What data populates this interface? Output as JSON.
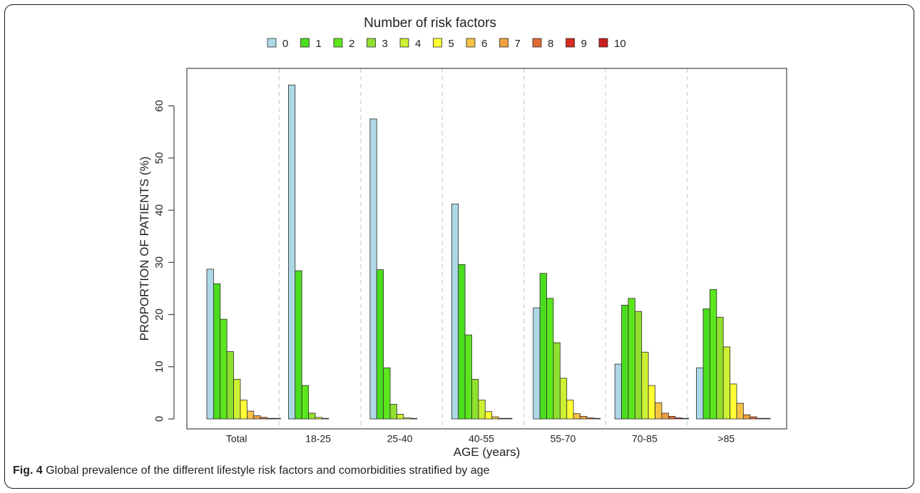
{
  "caption": {
    "label": "Fig. 4",
    "text": "Global prevalence of the different lifestyle risk factors and comorbidities stratified by age"
  },
  "chart_data": {
    "type": "bar",
    "legend_title": "Number of risk factors",
    "legend_position": "top",
    "xlabel": "AGE (years)",
    "ylabel": "PROPORTION OF PATIENTS (%)",
    "ylim": [
      0,
      65
    ],
    "yticks": [
      0,
      10,
      20,
      30,
      40,
      50,
      60
    ],
    "categories": [
      "Total",
      "18-25",
      "25-40",
      "40-55",
      "55-70",
      "70-85",
      ">85"
    ],
    "grid": "vertical dashed separators between groups",
    "series": [
      {
        "name": "0",
        "color": "#add8e6",
        "values": [
          28.7,
          64.0,
          57.5,
          41.2,
          21.3,
          10.5,
          9.8
        ]
      },
      {
        "name": "1",
        "color": "#4cdc1e",
        "values": [
          25.9,
          28.4,
          28.6,
          29.6,
          27.9,
          21.8,
          21.1
        ]
      },
      {
        "name": "2",
        "color": "#5ce61e",
        "values": [
          19.1,
          6.4,
          9.8,
          16.1,
          23.1,
          23.1,
          24.8
        ]
      },
      {
        "name": "3",
        "color": "#90e030",
        "values": [
          12.9,
          1.1,
          2.8,
          7.6,
          14.6,
          20.6,
          19.5
        ]
      },
      {
        "name": "4",
        "color": "#ccf032",
        "values": [
          7.6,
          0.3,
          0.9,
          3.6,
          7.8,
          12.8,
          13.8
        ]
      },
      {
        "name": "5",
        "color": "#ffff33",
        "values": [
          3.6,
          0.05,
          0.2,
          1.4,
          3.6,
          6.4,
          6.7
        ]
      },
      {
        "name": "6",
        "color": "#f5c244",
        "values": [
          1.5,
          0,
          0.05,
          0.4,
          1.0,
          3.1,
          3.0
        ]
      },
      {
        "name": "7",
        "color": "#f0a040",
        "values": [
          0.6,
          0,
          0,
          0.1,
          0.5,
          1.1,
          0.8
        ]
      },
      {
        "name": "8",
        "color": "#e06a30",
        "values": [
          0.3,
          0,
          0,
          0.05,
          0.2,
          0.5,
          0.4
        ]
      },
      {
        "name": "9",
        "color": "#d62a1e",
        "values": [
          0.1,
          0,
          0,
          0,
          0.05,
          0.2,
          0.1
        ]
      },
      {
        "name": "10",
        "color": "#c81e1e",
        "values": [
          0.05,
          0,
          0,
          0,
          0,
          0.05,
          0.05
        ]
      }
    ]
  }
}
